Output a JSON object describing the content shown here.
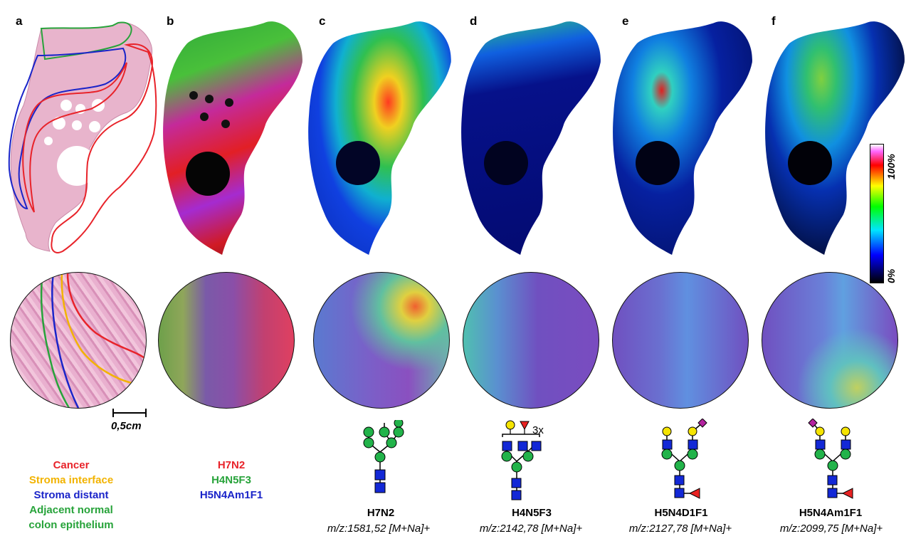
{
  "panels": {
    "a": "a",
    "b": "b",
    "c": "c",
    "d": "d",
    "e": "e",
    "f": "f"
  },
  "regions_legend": {
    "cancer": "Cancer",
    "stroma_interface": "Stroma interface",
    "stroma_distant": "Stroma distant",
    "adjacent_normal_1": "Adjacent normal",
    "adjacent_normal_2": "colon epithelium"
  },
  "overlay_legend": {
    "red": "H7N2",
    "green": "H4N5F3",
    "blue": "H5N4Am1F1"
  },
  "colors": {
    "cancer": "#e8232a",
    "stroma_interface": "#f2b300",
    "stroma_distant": "#1a24c9",
    "adjacent_normal": "#27a33a",
    "glcnac": "#1328d6",
    "mannose": "#22b34a",
    "galactose": "#f5e400",
    "fucose": "#e82222",
    "sialic": "#b3239f"
  },
  "scale_bar": "0,5cm",
  "colorbar": {
    "max": "100%",
    "min": "0%"
  },
  "glycans": [
    {
      "name": "H7N2",
      "mz": "m/z:1581,52 [M+Na]+"
    },
    {
      "name": "H4N5F3",
      "mz": "m/z:2142,78 [M+Na]+",
      "note": "3x"
    },
    {
      "name": "H5N4D1F1",
      "mz": "m/z:2127,78 [M+Na]+"
    },
    {
      "name": "H5N4Am1F1",
      "mz": "m/z:2099,75 [M+Na]+"
    }
  ]
}
